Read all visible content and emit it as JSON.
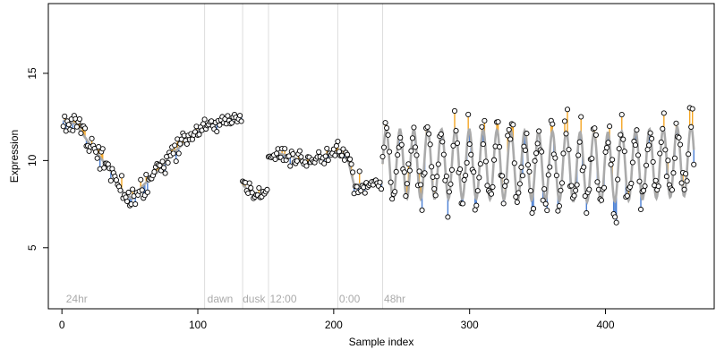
{
  "chart_data": {
    "type": "scatter",
    "title": "",
    "xlabel": "Sample index",
    "ylabel": "Expression",
    "xlim": [
      -10,
      480
    ],
    "ylim": [
      1.5,
      19
    ],
    "x_ticks": [
      0,
      100,
      200,
      300,
      400
    ],
    "y_ticks": [
      5,
      10,
      15
    ],
    "grid": false,
    "legend": "none",
    "colors": {
      "fit_line": "#aaaaaa",
      "residual_above": "#f5a623",
      "residual_below": "#4a7fd4",
      "point_fill": "#ffffff",
      "point_stroke": "#000000",
      "region_divider": "#dddddd",
      "region_label": "#aaaaaa"
    },
    "region_boundaries": [
      105,
      133,
      152,
      203,
      236
    ],
    "region_labels": [
      {
        "text": "24hr",
        "x": 3
      },
      {
        "text": "dawn",
        "x": 107
      },
      {
        "text": "dusk",
        "x": 133
      },
      {
        "text": "12:00",
        "x": 153
      },
      {
        "text": "0:00",
        "x": 204
      },
      {
        "text": "48hr",
        "x": 237
      }
    ],
    "segments": [
      {
        "x_start": 1,
        "x_end": 104,
        "knots": [
          [
            1,
            12.3
          ],
          [
            10,
            12.1
          ],
          [
            20,
            11.0
          ],
          [
            28,
            10.2
          ],
          [
            36,
            9.4
          ],
          [
            45,
            8.2
          ],
          [
            52,
            7.8
          ],
          [
            60,
            8.6
          ],
          [
            70,
            9.3
          ],
          [
            80,
            10.3
          ],
          [
            90,
            11.0
          ],
          [
            100,
            11.7
          ],
          [
            104,
            12.0
          ]
        ],
        "wave_amp": 0,
        "wave_period": 10,
        "noise": 0.55
      },
      {
        "x_start": 105,
        "x_end": 132,
        "knots": [
          [
            105,
            12.0
          ],
          [
            115,
            12.2
          ],
          [
            125,
            12.4
          ],
          [
            132,
            12.5
          ]
        ],
        "wave_amp": 0,
        "wave_period": 10,
        "noise": 0.4
      },
      {
        "x_start": 133,
        "x_end": 151,
        "knots": [
          [
            133,
            8.6
          ],
          [
            140,
            8.1
          ],
          [
            146,
            8.1
          ],
          [
            151,
            8.3
          ]
        ],
        "wave_amp": 0,
        "wave_period": 10,
        "noise": 0.35
      },
      {
        "x_start": 152,
        "x_end": 202,
        "knots": [
          [
            152,
            10.3
          ],
          [
            160,
            10.4
          ],
          [
            170,
            10.2
          ],
          [
            180,
            9.8
          ],
          [
            190,
            10.2
          ],
          [
            202,
            10.5
          ]
        ],
        "wave_amp": 0,
        "wave_period": 10,
        "noise": 0.45
      },
      {
        "x_start": 203,
        "x_end": 235,
        "knots": [
          [
            203,
            10.6
          ],
          [
            210,
            10.2
          ],
          [
            215,
            8.6
          ],
          [
            225,
            8.7
          ],
          [
            235,
            8.8
          ]
        ],
        "wave_amp": 0,
        "wave_period": 10,
        "noise": 0.6
      },
      {
        "x_start": 236,
        "x_end": 465,
        "knots": [
          [
            236,
            9.8
          ],
          [
            300,
            9.8
          ],
          [
            400,
            9.6
          ],
          [
            465,
            10.0
          ]
        ],
        "wave_amp": 2.0,
        "wave_period": 10.2,
        "noise": 1.0
      }
    ]
  }
}
